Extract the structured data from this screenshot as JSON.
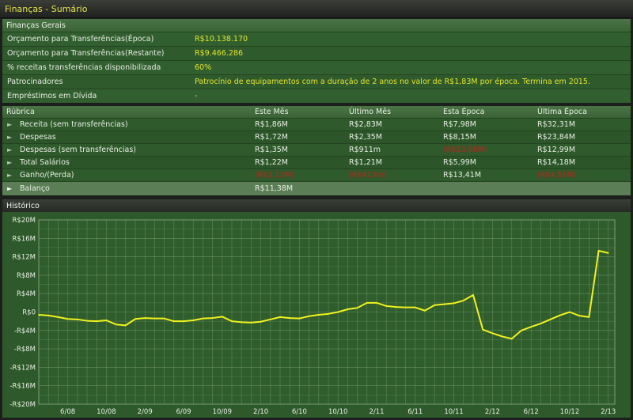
{
  "window": {
    "title": "Finanças - Sumário"
  },
  "general": {
    "header": "Finanças Gerais",
    "rows": [
      {
        "label": "Orçamento para Transferências(Época)",
        "value": "R$10.138.170"
      },
      {
        "label": "Orçamento para Transferências(Restante)",
        "value": "R$9.466.286"
      },
      {
        "label": "% receitas transferências disponibilizada",
        "value": "60%"
      },
      {
        "label": "Patrocinadores",
        "value": "Patrocínio de equipamentos com a duração de 2 anos no valor de R$1,83M por época. Termina em 2015."
      },
      {
        "label": "Empréstimos em Dívida",
        "value": "-"
      }
    ]
  },
  "table": {
    "headers": [
      "Rúbrica",
      "Este Mês",
      "Último Mês",
      "Esta Época",
      "Última Época"
    ],
    "rows": [
      {
        "name": "Receita (sem transferências)",
        "cells": [
          "R$1,86M",
          "R$2,83M",
          "R$7,98M",
          "R$32,31M"
        ],
        "negative": [
          false,
          false,
          false,
          false
        ]
      },
      {
        "name": "Despesas",
        "cells": [
          "R$1,72M",
          "R$2,35M",
          "R$8,15M",
          "R$23,84M"
        ],
        "negative": [
          false,
          false,
          false,
          false
        ]
      },
      {
        "name": "Despesas (sem transferências)",
        "cells": [
          "R$1,35M",
          "R$911m",
          "(R$13,56M)",
          "R$12,99M"
        ],
        "negative": [
          false,
          false,
          true,
          false
        ]
      },
      {
        "name": "Total Salários",
        "cells": [
          "R$1,22M",
          "R$1,21M",
          "R$5,99M",
          "R$14,18M"
        ],
        "negative": [
          false,
          false,
          false,
          false
        ]
      },
      {
        "name": "Ganho/(Perda)",
        "cells": [
          "(R$1,13M)",
          "(R$413m)",
          "R$13,41M",
          "(R$4,51M)"
        ],
        "negative": [
          true,
          true,
          false,
          true
        ]
      },
      {
        "name": "Balanço",
        "cells": [
          "R$11,38M",
          "",
          "",
          ""
        ],
        "negative": [
          false,
          false,
          false,
          false
        ]
      }
    ]
  },
  "history": {
    "header": "Histórico"
  },
  "chart_data": {
    "type": "line",
    "title": "",
    "line_color": "#f2f21e",
    "grid": true,
    "ylim": [
      -20,
      20
    ],
    "yunit": "R$ millions",
    "ytick_labels": [
      "R$20M",
      "R$16M",
      "R$12M",
      "R$8M",
      "R$4M",
      "R$0",
      "-R$4M",
      "-R$8M",
      "-R$12M",
      "-R$16M",
      "-R$20M"
    ],
    "xtick_labels": [
      "6/08",
      "10/08",
      "2/09",
      "6/09",
      "10/09",
      "2/10",
      "6/10",
      "10/10",
      "2/11",
      "6/11",
      "10/11",
      "2/12",
      "6/12",
      "10/12",
      "2/13"
    ],
    "x": [
      "3/08",
      "4/08",
      "5/08",
      "6/08",
      "7/08",
      "8/08",
      "9/08",
      "10/08",
      "11/08",
      "12/08",
      "1/09",
      "2/09",
      "3/09",
      "4/09",
      "5/09",
      "6/09",
      "7/09",
      "8/09",
      "9/09",
      "10/09",
      "11/09",
      "12/09",
      "1/10",
      "2/10",
      "3/10",
      "4/10",
      "5/10",
      "6/10",
      "7/10",
      "8/10",
      "9/10",
      "10/10",
      "11/10",
      "12/10",
      "1/11",
      "2/11",
      "3/11",
      "4/11",
      "5/11",
      "6/11",
      "7/11",
      "8/11",
      "9/11",
      "10/11",
      "11/11",
      "12/11",
      "1/12",
      "2/12",
      "3/12",
      "4/12",
      "5/12",
      "6/12",
      "7/12",
      "8/12",
      "9/12",
      "10/12",
      "11/12",
      "12/12",
      "1/13",
      "2/13"
    ],
    "values": [
      -0.6,
      -0.75,
      -1.1,
      -1.5,
      -1.6,
      -1.9,
      -2.0,
      -1.8,
      -2.7,
      -2.9,
      -1.5,
      -1.3,
      -1.4,
      -1.4,
      -2.0,
      -2.0,
      -1.8,
      -1.4,
      -1.3,
      -1.0,
      -2.0,
      -2.2,
      -2.3,
      -2.1,
      -1.6,
      -1.1,
      -1.3,
      -1.4,
      -0.9,
      -0.6,
      -0.4,
      0.0,
      0.6,
      0.9,
      2.0,
      2.0,
      1.3,
      1.1,
      1.0,
      1.0,
      0.3,
      1.5,
      1.7,
      1.9,
      2.5,
      3.7,
      -3.8,
      -4.6,
      -5.3,
      -5.8,
      -4.0,
      -3.2,
      -2.5,
      -1.6,
      -0.7,
      0.0,
      -0.8,
      -1.1,
      13.3,
      12.8
    ]
  }
}
